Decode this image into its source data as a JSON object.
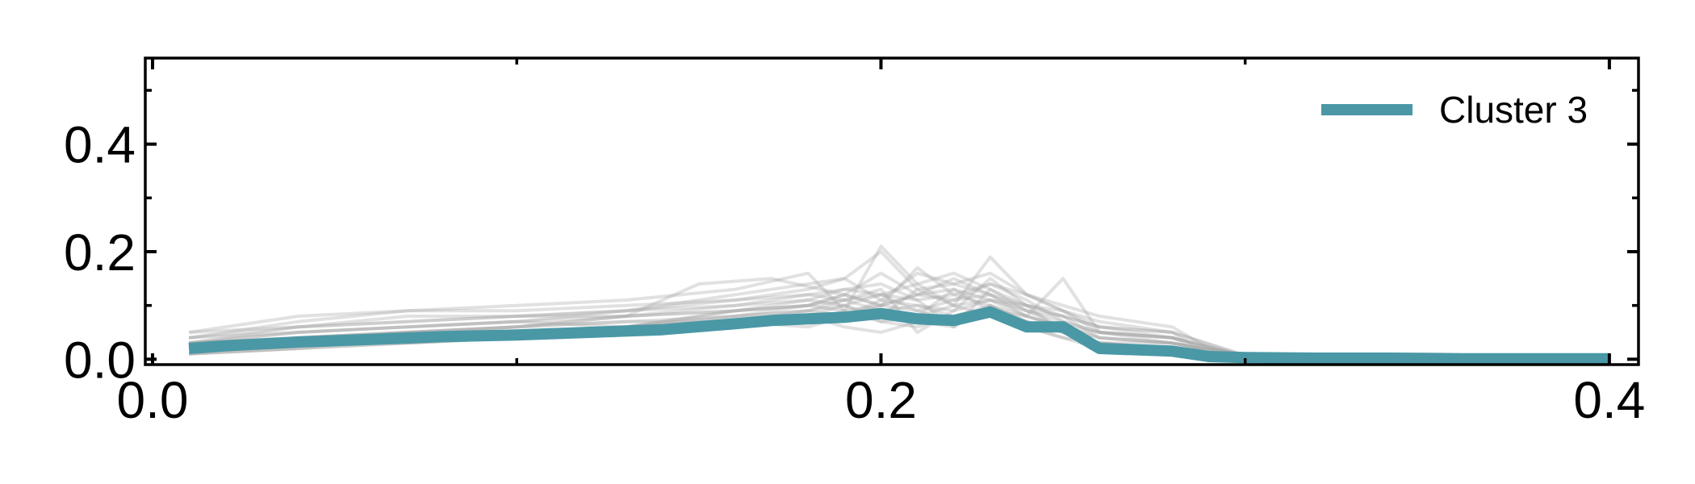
{
  "chart_data": {
    "type": "line",
    "title": "",
    "xlabel": "",
    "ylabel": "",
    "xlim": [
      -0.002,
      0.408
    ],
    "ylim": [
      -0.01,
      0.56
    ],
    "xticks": [
      0.0,
      0.2,
      0.4
    ],
    "xtick_labels": [
      "0.0",
      "0.2",
      "0.4"
    ],
    "xticks_minor": [
      0.1,
      0.3
    ],
    "yticks": [
      0.0,
      0.2,
      0.4
    ],
    "ytick_labels": [
      "0.0",
      "0.2",
      "0.4"
    ],
    "yticks_minor": [
      0.1,
      0.3,
      0.5
    ],
    "grid": false,
    "legend_position": "top-right",
    "series": [
      {
        "name": "Cluster 3",
        "color": "#4a98a6",
        "x": [
          0.01,
          0.02,
          0.04,
          0.06,
          0.08,
          0.1,
          0.12,
          0.14,
          0.16,
          0.17,
          0.18,
          0.19,
          0.2,
          0.21,
          0.22,
          0.23,
          0.24,
          0.25,
          0.26,
          0.28,
          0.29,
          0.3,
          0.32,
          0.34,
          0.36,
          0.38,
          0.4
        ],
        "y": [
          0.02,
          0.025,
          0.032,
          0.037,
          0.042,
          0.045,
          0.05,
          0.055,
          0.066,
          0.072,
          0.075,
          0.078,
          0.085,
          0.075,
          0.072,
          0.088,
          0.06,
          0.06,
          0.02,
          0.015,
          0.005,
          0.003,
          0.002,
          0.002,
          0.001,
          0.001,
          0.001
        ]
      }
    ],
    "background_series_color": "#a8a8a8",
    "background_series": [
      {
        "x": [
          0.01,
          0.04,
          0.07,
          0.1,
          0.13,
          0.16,
          0.19,
          0.2,
          0.21,
          0.22,
          0.23,
          0.24,
          0.25,
          0.26,
          0.28,
          0.29,
          0.3,
          0.33,
          0.36,
          0.4
        ],
        "y": [
          0.03,
          0.06,
          0.07,
          0.08,
          0.09,
          0.12,
          0.15,
          0.2,
          0.13,
          0.14,
          0.16,
          0.12,
          0.09,
          0.06,
          0.05,
          0.01,
          0.005,
          0.002,
          0.001,
          0.001
        ]
      },
      {
        "x": [
          0.01,
          0.04,
          0.07,
          0.1,
          0.13,
          0.15,
          0.17,
          0.19,
          0.2,
          0.21,
          0.22,
          0.23,
          0.24,
          0.25,
          0.26,
          0.28,
          0.29,
          0.3,
          0.33,
          0.36,
          0.4
        ],
        "y": [
          0.02,
          0.04,
          0.05,
          0.06,
          0.08,
          0.14,
          0.15,
          0.12,
          0.1,
          0.17,
          0.12,
          0.1,
          0.08,
          0.15,
          0.05,
          0.04,
          0.01,
          0.005,
          0.002,
          0.001,
          0.001
        ]
      },
      {
        "x": [
          0.01,
          0.04,
          0.07,
          0.1,
          0.13,
          0.16,
          0.18,
          0.19,
          0.2,
          0.21,
          0.22,
          0.23,
          0.24,
          0.25,
          0.26,
          0.28,
          0.29,
          0.3,
          0.34,
          0.4
        ],
        "y": [
          0.04,
          0.07,
          0.09,
          0.1,
          0.11,
          0.13,
          0.16,
          0.09,
          0.21,
          0.14,
          0.1,
          0.19,
          0.12,
          0.1,
          0.08,
          0.06,
          0.02,
          0.008,
          0.002,
          0.001
        ]
      },
      {
        "x": [
          0.01,
          0.04,
          0.07,
          0.1,
          0.13,
          0.16,
          0.18,
          0.19,
          0.2,
          0.21,
          0.22,
          0.23,
          0.24,
          0.25,
          0.26,
          0.28,
          0.3,
          0.34,
          0.4
        ],
        "y": [
          0.01,
          0.02,
          0.03,
          0.04,
          0.05,
          0.07,
          0.09,
          0.11,
          0.13,
          0.05,
          0.09,
          0.15,
          0.1,
          0.05,
          0.03,
          0.02,
          0.004,
          0.001,
          0.001
        ]
      },
      {
        "x": [
          0.01,
          0.04,
          0.07,
          0.1,
          0.13,
          0.16,
          0.18,
          0.19,
          0.2,
          0.21,
          0.22,
          0.23,
          0.24,
          0.25,
          0.26,
          0.28,
          0.3,
          0.34,
          0.4
        ],
        "y": [
          0.05,
          0.08,
          0.09,
          0.09,
          0.1,
          0.11,
          0.12,
          0.13,
          0.14,
          0.11,
          0.06,
          0.13,
          0.09,
          0.08,
          0.04,
          0.03,
          0.006,
          0.002,
          0.001
        ]
      },
      {
        "x": [
          0.01,
          0.04,
          0.07,
          0.1,
          0.13,
          0.16,
          0.18,
          0.19,
          0.2,
          0.21,
          0.22,
          0.23,
          0.24,
          0.25,
          0.26,
          0.28,
          0.3,
          0.34,
          0.4
        ],
        "y": [
          0.02,
          0.03,
          0.04,
          0.05,
          0.06,
          0.09,
          0.11,
          0.1,
          0.12,
          0.09,
          0.11,
          0.14,
          0.11,
          0.07,
          0.05,
          0.04,
          0.005,
          0.001,
          0.001
        ]
      },
      {
        "x": [
          0.01,
          0.04,
          0.07,
          0.1,
          0.13,
          0.16,
          0.18,
          0.19,
          0.2,
          0.21,
          0.22,
          0.23,
          0.24,
          0.25,
          0.26,
          0.28,
          0.3,
          0.34,
          0.4
        ],
        "y": [
          0.03,
          0.05,
          0.06,
          0.07,
          0.06,
          0.08,
          0.1,
          0.12,
          0.1,
          0.12,
          0.15,
          0.12,
          0.08,
          0.06,
          0.04,
          0.03,
          0.006,
          0.002,
          0.001
        ]
      },
      {
        "x": [
          0.01,
          0.04,
          0.07,
          0.1,
          0.13,
          0.16,
          0.18,
          0.19,
          0.2,
          0.21,
          0.22,
          0.23,
          0.24,
          0.25,
          0.26,
          0.28,
          0.3,
          0.34,
          0.4
        ],
        "y": [
          0.02,
          0.03,
          0.05,
          0.06,
          0.07,
          0.08,
          0.09,
          0.08,
          0.11,
          0.1,
          0.08,
          0.09,
          0.07,
          0.05,
          0.03,
          0.02,
          0.004,
          0.001,
          0.001
        ]
      },
      {
        "x": [
          0.01,
          0.04,
          0.07,
          0.1,
          0.13,
          0.16,
          0.18,
          0.19,
          0.2,
          0.21,
          0.22,
          0.23,
          0.24,
          0.25,
          0.26,
          0.28,
          0.3,
          0.34,
          0.4
        ],
        "y": [
          0.04,
          0.05,
          0.06,
          0.07,
          0.08,
          0.1,
          0.12,
          0.11,
          0.09,
          0.08,
          0.1,
          0.11,
          0.09,
          0.06,
          0.05,
          0.03,
          0.005,
          0.002,
          0.001
        ]
      },
      {
        "x": [
          0.01,
          0.04,
          0.07,
          0.1,
          0.13,
          0.16,
          0.18,
          0.19,
          0.2,
          0.21,
          0.22,
          0.23,
          0.24,
          0.25,
          0.26,
          0.28,
          0.3,
          0.34,
          0.4
        ],
        "y": [
          0.01,
          0.02,
          0.03,
          0.04,
          0.05,
          0.06,
          0.07,
          0.09,
          0.07,
          0.06,
          0.08,
          0.1,
          0.07,
          0.05,
          0.02,
          0.02,
          0.003,
          0.001,
          0.001
        ]
      },
      {
        "x": [
          0.01,
          0.04,
          0.07,
          0.1,
          0.13,
          0.16,
          0.18,
          0.19,
          0.2,
          0.21,
          0.22,
          0.23,
          0.24,
          0.25,
          0.26,
          0.28,
          0.3,
          0.34,
          0.4
        ],
        "y": [
          0.03,
          0.04,
          0.05,
          0.06,
          0.07,
          0.07,
          0.08,
          0.1,
          0.08,
          0.13,
          0.1,
          0.08,
          0.06,
          0.04,
          0.03,
          0.02,
          0.004,
          0.001,
          0.001
        ]
      },
      {
        "x": [
          0.01,
          0.04,
          0.07,
          0.1,
          0.13,
          0.16,
          0.18,
          0.19,
          0.2,
          0.21,
          0.22,
          0.23,
          0.24,
          0.25,
          0.26,
          0.28,
          0.3,
          0.34,
          0.4
        ],
        "y": [
          0.02,
          0.04,
          0.05,
          0.05,
          0.06,
          0.09,
          0.1,
          0.12,
          0.16,
          0.12,
          0.13,
          0.11,
          0.1,
          0.08,
          0.06,
          0.04,
          0.006,
          0.002,
          0.001
        ]
      },
      {
        "x": [
          0.01,
          0.04,
          0.07,
          0.1,
          0.13,
          0.16,
          0.18,
          0.19,
          0.2,
          0.21,
          0.22,
          0.23,
          0.24,
          0.25,
          0.26,
          0.28,
          0.3,
          0.34,
          0.4
        ],
        "y": [
          0.05,
          0.06,
          0.07,
          0.08,
          0.08,
          0.09,
          0.1,
          0.11,
          0.12,
          0.11,
          0.12,
          0.14,
          0.12,
          0.09,
          0.07,
          0.05,
          0.007,
          0.002,
          0.001
        ]
      },
      {
        "x": [
          0.01,
          0.04,
          0.07,
          0.1,
          0.13,
          0.16,
          0.18,
          0.19,
          0.2,
          0.21,
          0.22,
          0.23,
          0.24,
          0.25,
          0.26,
          0.28,
          0.3,
          0.34,
          0.4
        ],
        "y": [
          0.01,
          0.02,
          0.04,
          0.05,
          0.06,
          0.07,
          0.06,
          0.08,
          0.1,
          0.09,
          0.07,
          0.08,
          0.06,
          0.04,
          0.02,
          0.01,
          0.003,
          0.001,
          0.001
        ]
      },
      {
        "x": [
          0.01,
          0.04,
          0.07,
          0.1,
          0.13,
          0.16,
          0.18,
          0.19,
          0.2,
          0.21,
          0.22,
          0.23,
          0.24,
          0.25,
          0.26,
          0.28,
          0.3,
          0.34,
          0.4
        ],
        "y": [
          0.03,
          0.05,
          0.06,
          0.07,
          0.09,
          0.11,
          0.13,
          0.15,
          0.11,
          0.16,
          0.14,
          0.12,
          0.09,
          0.07,
          0.05,
          0.04,
          0.006,
          0.002,
          0.001
        ]
      },
      {
        "x": [
          0.01,
          0.04,
          0.07,
          0.1,
          0.13,
          0.16,
          0.18,
          0.19,
          0.2,
          0.21,
          0.22,
          0.23,
          0.24,
          0.25,
          0.26,
          0.28,
          0.3,
          0.34,
          0.4
        ],
        "y": [
          0.02,
          0.03,
          0.03,
          0.04,
          0.05,
          0.06,
          0.08,
          0.07,
          0.09,
          0.1,
          0.09,
          0.11,
          0.08,
          0.06,
          0.03,
          0.03,
          0.004,
          0.001,
          0.001
        ]
      },
      {
        "x": [
          0.01,
          0.04,
          0.07,
          0.1,
          0.13,
          0.16,
          0.18,
          0.19,
          0.2,
          0.21,
          0.22,
          0.23,
          0.24,
          0.25,
          0.26,
          0.28,
          0.3,
          0.34,
          0.4
        ],
        "y": [
          0.04,
          0.06,
          0.08,
          0.08,
          0.09,
          0.1,
          0.11,
          0.13,
          0.12,
          0.14,
          0.16,
          0.13,
          0.1,
          0.08,
          0.06,
          0.05,
          0.007,
          0.002,
          0.001
        ]
      },
      {
        "x": [
          0.01,
          0.04,
          0.07,
          0.1,
          0.13,
          0.16,
          0.18,
          0.19,
          0.2,
          0.21,
          0.22,
          0.23,
          0.24,
          0.25,
          0.26,
          0.28,
          0.3,
          0.34,
          0.4
        ],
        "y": [
          0.02,
          0.03,
          0.04,
          0.05,
          0.05,
          0.07,
          0.08,
          0.06,
          0.05,
          0.07,
          0.06,
          0.1,
          0.07,
          0.05,
          0.03,
          0.02,
          0.003,
          0.001,
          0.001
        ]
      },
      {
        "x": [
          0.01,
          0.04,
          0.07,
          0.1,
          0.13,
          0.16,
          0.18,
          0.19,
          0.2,
          0.21,
          0.22,
          0.23,
          0.24,
          0.25,
          0.26,
          0.28,
          0.3,
          0.34,
          0.4
        ],
        "y": [
          0.03,
          0.04,
          0.05,
          0.06,
          0.08,
          0.09,
          0.1,
          0.09,
          0.1,
          0.12,
          0.11,
          0.12,
          0.1,
          0.09,
          0.05,
          0.04,
          0.005,
          0.001,
          0.001
        ]
      },
      {
        "x": [
          0.01,
          0.04,
          0.07,
          0.1,
          0.13,
          0.16,
          0.18,
          0.19,
          0.2,
          0.21,
          0.22,
          0.23,
          0.24,
          0.25,
          0.26,
          0.28,
          0.3,
          0.34,
          0.4
        ],
        "y": [
          0.01,
          0.03,
          0.04,
          0.05,
          0.06,
          0.08,
          0.09,
          0.1,
          0.07,
          0.08,
          0.13,
          0.09,
          0.08,
          0.06,
          0.04,
          0.03,
          0.004,
          0.001,
          0.001
        ]
      }
    ]
  }
}
